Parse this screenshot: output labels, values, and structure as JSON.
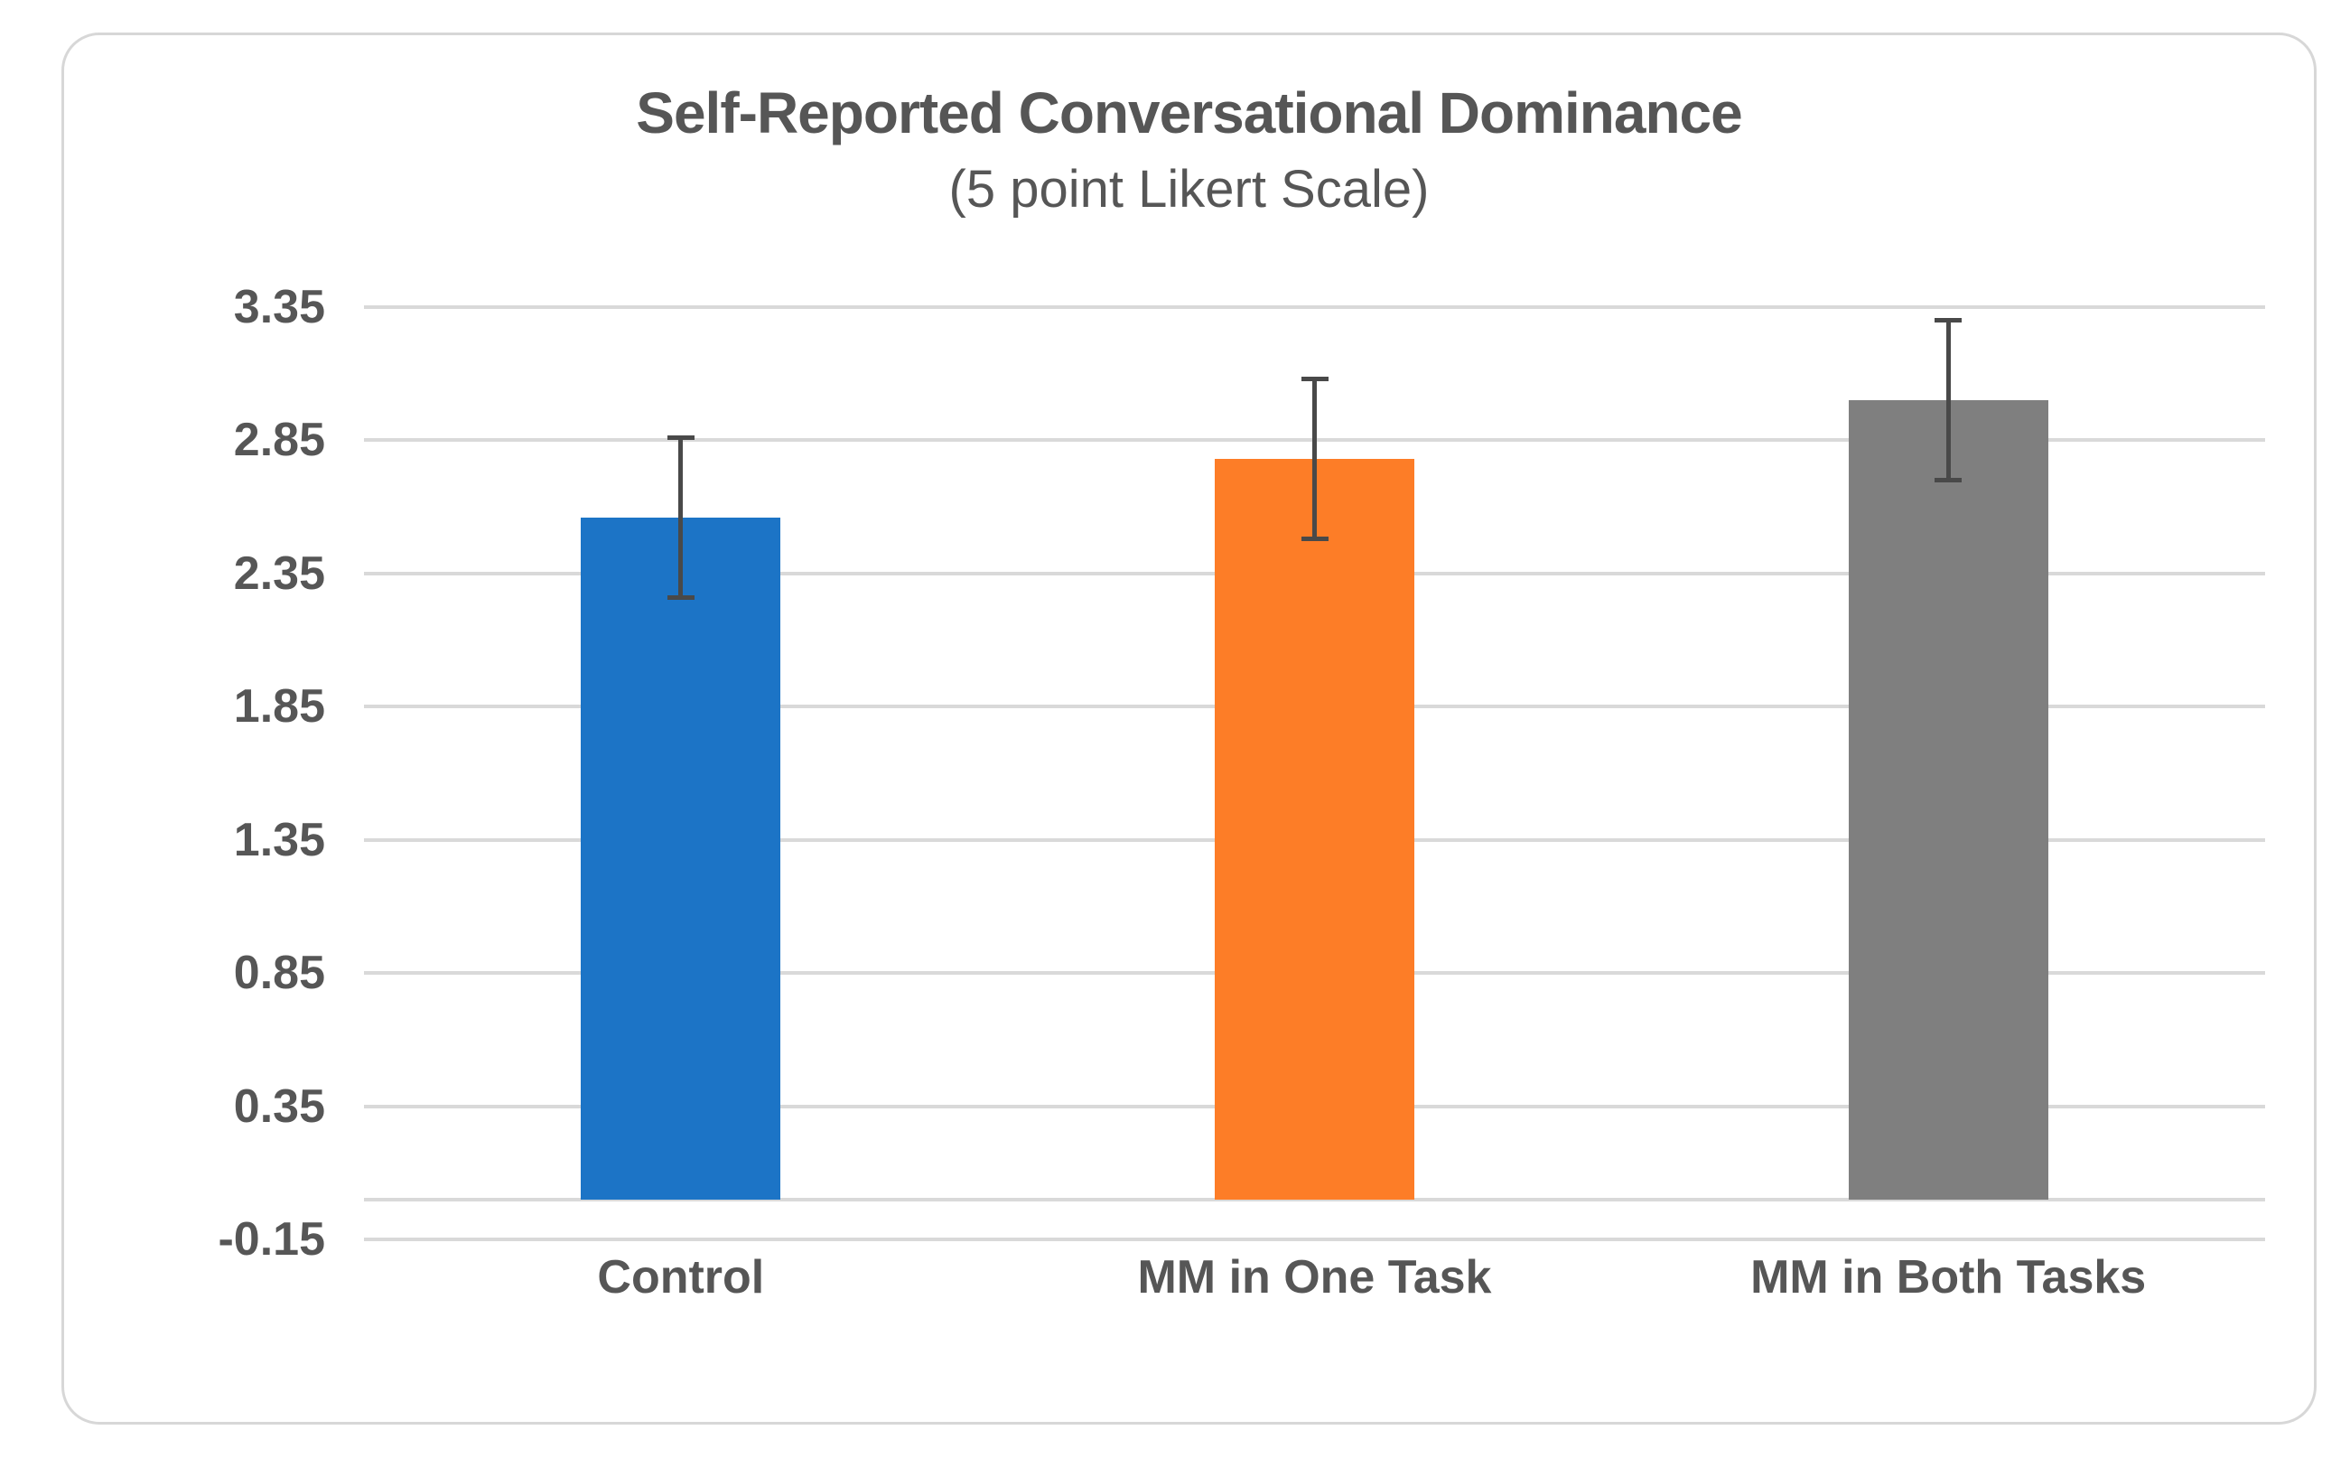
{
  "chart_data": {
    "type": "bar",
    "title": "Self-Reported Conversational Dominance",
    "subtitle": "(5 point Likert Scale)",
    "categories": [
      "Control",
      "MM in One Task",
      "MM in Both Tasks"
    ],
    "values": [
      2.56,
      2.78,
      3.0
    ],
    "error_bars": [
      0.3,
      0.3,
      0.3
    ],
    "series_colors": [
      "#1c74c6",
      "#fd7d27",
      "#7f7f7f"
    ],
    "yticks": [
      3.35,
      2.85,
      2.35,
      1.85,
      1.35,
      0.85,
      0.35,
      -0.15
    ],
    "ylim": [
      -0.15,
      3.35
    ],
    "baseline": 0,
    "xlabel": "",
    "ylabel": "",
    "grid": true,
    "legend": false,
    "gridline_color": "#d9d9d9",
    "text_color": "#565656",
    "error_bar_color": "#494949",
    "frame_border_color": "#d7d7d7",
    "background_color": "#ffffff"
  }
}
